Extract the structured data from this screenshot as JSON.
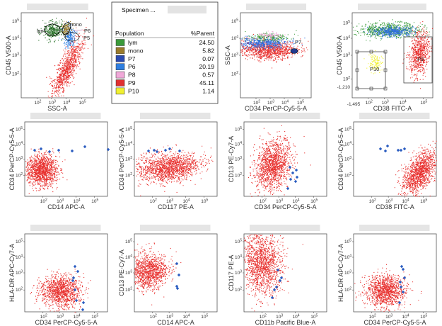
{
  "chart_data": {
    "type": "scatter",
    "table": {
      "title": "Specimen ...",
      "headers": [
        "Population",
        "%Parent"
      ],
      "rows": [
        {
          "name": "lym",
          "value": "24.50",
          "color": "#3a9a3a"
        },
        {
          "name": "mono",
          "value": "5.82",
          "color": "#9a7a2a"
        },
        {
          "name": "P7",
          "value": "0.07",
          "color": "#2a4ab0"
        },
        {
          "name": "P6",
          "value": "20.19",
          "color": "#2e7ee0"
        },
        {
          "name": "P8",
          "value": "0.57",
          "color": "#f0a8d8"
        },
        {
          "name": "P9",
          "value": "45.11",
          "color": "#e03030"
        },
        {
          "name": "P10",
          "value": "1.14",
          "color": "#f0f030"
        }
      ]
    },
    "plots": [
      {
        "id": "p1",
        "xlabel": "SSC-A",
        "ylabel": "CD45 V500-A",
        "gates": [
          "lym",
          "mono",
          "P6",
          "P5"
        ]
      },
      {
        "id": "p3",
        "xlabel": "CD34 PerCP-Cy5-5-A",
        "ylabel": "SSC-A",
        "gates": [
          "P7"
        ]
      },
      {
        "id": "p4",
        "xlabel": "CD38 FITC-A",
        "ylabel": "CD45 V500-A",
        "gates": [
          "P10",
          "P8"
        ],
        "ytick_extra": "-1,210",
        "xtick_extra": "-1,495"
      },
      {
        "id": "p5",
        "xlabel": "CD14 APC-A",
        "ylabel": "CD34 PerCP-Cy5-5-A"
      },
      {
        "id": "p6",
        "xlabel": "CD117 PE-A",
        "ylabel": "CD34 PerCP-Cy5-5-A"
      },
      {
        "id": "p7",
        "xlabel": "CD34 PerCP-Cy5-5-A",
        "ylabel": "CD13 PE-Cy7-A"
      },
      {
        "id": "p8",
        "xlabel": "CD38 FITC-A",
        "ylabel": "CD34 PerCP-Cy5-5-A"
      },
      {
        "id": "p9",
        "xlabel": "CD34 PerCP-Cy5-5-A",
        "ylabel": "HLA-DR APC-Cy7-A"
      },
      {
        "id": "p10",
        "xlabel": "CD14 APC-A",
        "ylabel": "CD13 PE-Cy7-A"
      },
      {
        "id": "p11",
        "xlabel": "CD11b Pacific Blue-A",
        "ylabel": "CD117 PE-A"
      },
      {
        "id": "p12",
        "xlabel": "CD34 PerCP-Cy5-5-A",
        "ylabel": "HLA-DR APC-Cy7-A"
      }
    ],
    "log_ticks_y": [
      "10^5",
      "10^4",
      "10^3",
      "10^2"
    ],
    "log_ticks_x": [
      "10^2",
      "10^3",
      "10^4",
      "10^5"
    ],
    "colors": {
      "main_population": "#e8312f",
      "blast_markers": "#2a5cc0"
    }
  }
}
